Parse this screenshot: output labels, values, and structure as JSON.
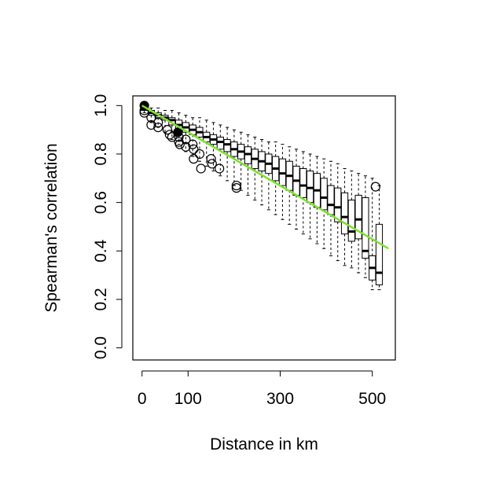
{
  "chart_data": {
    "type": "boxplot",
    "title": "",
    "xlabel": "Distance in km",
    "ylabel": "Spearman's correlation",
    "xlim": [
      -20,
      550
    ],
    "ylim": [
      -0.05,
      1.04
    ],
    "xticks": [
      0,
      100,
      300,
      500
    ],
    "xtick_labels": [
      "0",
      "100",
      "300",
      "500"
    ],
    "yticks": [
      0.0,
      0.2,
      0.4,
      0.6,
      0.8,
      1.0
    ],
    "ytick_labels": [
      "0.0",
      "0.2",
      "0.4",
      "0.6",
      "0.8",
      "1.0"
    ],
    "grid": false,
    "box_width_km": 14,
    "boxes": [
      {
        "x": 5,
        "q1": 0.98,
        "median": 0.99,
        "q3": 1.0,
        "whisker_low": 0.97,
        "whisker_high": 1.0
      },
      {
        "x": 20,
        "q1": 0.96,
        "median": 0.97,
        "q3": 0.98,
        "whisker_low": 0.93,
        "whisker_high": 0.99
      },
      {
        "x": 35,
        "q1": 0.95,
        "median": 0.96,
        "q3": 0.97,
        "whisker_low": 0.91,
        "whisker_high": 0.99
      },
      {
        "x": 50,
        "q1": 0.94,
        "median": 0.95,
        "q3": 0.96,
        "whisker_low": 0.89,
        "whisker_high": 0.98
      },
      {
        "x": 65,
        "q1": 0.92,
        "median": 0.94,
        "q3": 0.95,
        "whisker_low": 0.86,
        "whisker_high": 0.98
      },
      {
        "x": 80,
        "q1": 0.9,
        "median": 0.92,
        "q3": 0.94,
        "whisker_low": 0.84,
        "whisker_high": 0.97
      },
      {
        "x": 95,
        "q1": 0.89,
        "median": 0.91,
        "q3": 0.93,
        "whisker_low": 0.81,
        "whisker_high": 0.96
      },
      {
        "x": 110,
        "q1": 0.88,
        "median": 0.9,
        "q3": 0.92,
        "whisker_low": 0.79,
        "whisker_high": 0.95
      },
      {
        "x": 125,
        "q1": 0.87,
        "median": 0.89,
        "q3": 0.91,
        "whisker_low": 0.77,
        "whisker_high": 0.95
      },
      {
        "x": 140,
        "q1": 0.85,
        "median": 0.87,
        "q3": 0.89,
        "whisker_low": 0.75,
        "whisker_high": 0.94
      },
      {
        "x": 155,
        "q1": 0.84,
        "median": 0.86,
        "q3": 0.88,
        "whisker_low": 0.73,
        "whisker_high": 0.93
      },
      {
        "x": 170,
        "q1": 0.82,
        "median": 0.85,
        "q3": 0.87,
        "whisker_low": 0.71,
        "whisker_high": 0.92
      },
      {
        "x": 185,
        "q1": 0.81,
        "median": 0.84,
        "q3": 0.86,
        "whisker_low": 0.69,
        "whisker_high": 0.91
      },
      {
        "x": 200,
        "q1": 0.79,
        "median": 0.82,
        "q3": 0.85,
        "whisker_low": 0.67,
        "whisker_high": 0.9
      },
      {
        "x": 215,
        "q1": 0.78,
        "median": 0.81,
        "q3": 0.84,
        "whisker_low": 0.65,
        "whisker_high": 0.89
      },
      {
        "x": 230,
        "q1": 0.76,
        "median": 0.8,
        "q3": 0.83,
        "whisker_low": 0.63,
        "whisker_high": 0.88
      },
      {
        "x": 245,
        "q1": 0.74,
        "median": 0.78,
        "q3": 0.82,
        "whisker_low": 0.61,
        "whisker_high": 0.87
      },
      {
        "x": 260,
        "q1": 0.73,
        "median": 0.77,
        "q3": 0.81,
        "whisker_low": 0.59,
        "whisker_high": 0.86
      },
      {
        "x": 275,
        "q1": 0.72,
        "median": 0.76,
        "q3": 0.8,
        "whisker_low": 0.57,
        "whisker_high": 0.85
      },
      {
        "x": 290,
        "q1": 0.69,
        "median": 0.74,
        "q3": 0.79,
        "whisker_low": 0.55,
        "whisker_high": 0.85
      },
      {
        "x": 305,
        "q1": 0.67,
        "median": 0.72,
        "q3": 0.78,
        "whisker_low": 0.53,
        "whisker_high": 0.84
      },
      {
        "x": 320,
        "q1": 0.65,
        "median": 0.71,
        "q3": 0.77,
        "whisker_low": 0.51,
        "whisker_high": 0.83
      },
      {
        "x": 335,
        "q1": 0.63,
        "median": 0.69,
        "q3": 0.75,
        "whisker_low": 0.49,
        "whisker_high": 0.82
      },
      {
        "x": 350,
        "q1": 0.62,
        "median": 0.67,
        "q3": 0.74,
        "whisker_low": 0.47,
        "whisker_high": 0.81
      },
      {
        "x": 365,
        "q1": 0.6,
        "median": 0.66,
        "q3": 0.73,
        "whisker_low": 0.45,
        "whisker_high": 0.8
      },
      {
        "x": 380,
        "q1": 0.58,
        "median": 0.65,
        "q3": 0.72,
        "whisker_low": 0.43,
        "whisker_high": 0.79
      },
      {
        "x": 395,
        "q1": 0.57,
        "median": 0.62,
        "q3": 0.7,
        "whisker_low": 0.41,
        "whisker_high": 0.78
      },
      {
        "x": 410,
        "q1": 0.55,
        "median": 0.59,
        "q3": 0.67,
        "whisker_low": 0.38,
        "whisker_high": 0.77
      },
      {
        "x": 425,
        "q1": 0.52,
        "median": 0.58,
        "q3": 0.66,
        "whisker_low": 0.36,
        "whisker_high": 0.76
      },
      {
        "x": 440,
        "q1": 0.47,
        "median": 0.54,
        "q3": 0.64,
        "whisker_low": 0.34,
        "whisker_high": 0.74
      },
      {
        "x": 455,
        "q1": 0.44,
        "median": 0.48,
        "q3": 0.61,
        "whisker_low": 0.33,
        "whisker_high": 0.73
      },
      {
        "x": 470,
        "q1": 0.45,
        "median": 0.53,
        "q3": 0.63,
        "whisker_low": 0.31,
        "whisker_high": 0.72
      },
      {
        "x": 485,
        "q1": 0.37,
        "median": 0.4,
        "q3": 0.62,
        "whisker_low": 0.29,
        "whisker_high": 0.71
      },
      {
        "x": 500,
        "q1": 0.28,
        "median": 0.33,
        "q3": 0.38,
        "whisker_low": 0.24,
        "whisker_high": 0.7
      },
      {
        "x": 515,
        "q1": 0.26,
        "median": 0.31,
        "q3": 0.51,
        "whisker_low": 0.24,
        "whisker_high": 0.67
      }
    ],
    "outliers": [
      {
        "x": 5,
        "y": 1.0,
        "filled": true
      },
      {
        "x": 5,
        "y": 0.98,
        "filled": false
      },
      {
        "x": 5,
        "y": 0.97,
        "filled": false
      },
      {
        "x": 20,
        "y": 0.95,
        "filled": false
      },
      {
        "x": 20,
        "y": 0.92,
        "filled": false
      },
      {
        "x": 35,
        "y": 0.93,
        "filled": false
      },
      {
        "x": 35,
        "y": 0.91,
        "filled": false
      },
      {
        "x": 55,
        "y": 0.9,
        "filled": false
      },
      {
        "x": 60,
        "y": 0.88,
        "filled": false
      },
      {
        "x": 65,
        "y": 0.87,
        "filled": false
      },
      {
        "x": 78,
        "y": 0.89,
        "filled": true
      },
      {
        "x": 80,
        "y": 0.87,
        "filled": false
      },
      {
        "x": 80,
        "y": 0.85,
        "filled": false
      },
      {
        "x": 82,
        "y": 0.84,
        "filled": false
      },
      {
        "x": 95,
        "y": 0.86,
        "filled": false
      },
      {
        "x": 95,
        "y": 0.83,
        "filled": false
      },
      {
        "x": 110,
        "y": 0.84,
        "filled": false
      },
      {
        "x": 112,
        "y": 0.82,
        "filled": false
      },
      {
        "x": 112,
        "y": 0.78,
        "filled": false
      },
      {
        "x": 125,
        "y": 0.8,
        "filled": false
      },
      {
        "x": 128,
        "y": 0.74,
        "filled": false
      },
      {
        "x": 150,
        "y": 0.78,
        "filled": false
      },
      {
        "x": 152,
        "y": 0.76,
        "filled": false
      },
      {
        "x": 168,
        "y": 0.74,
        "filled": false
      },
      {
        "x": 205,
        "y": 0.67,
        "filled": false
      },
      {
        "x": 205,
        "y": 0.66,
        "filled": false
      },
      {
        "x": 507,
        "y": 0.665,
        "filled": false
      }
    ],
    "trend_line": {
      "color": "#7fe030",
      "x": [
        0,
        535
      ],
      "y": [
        1.0,
        0.41
      ]
    }
  }
}
